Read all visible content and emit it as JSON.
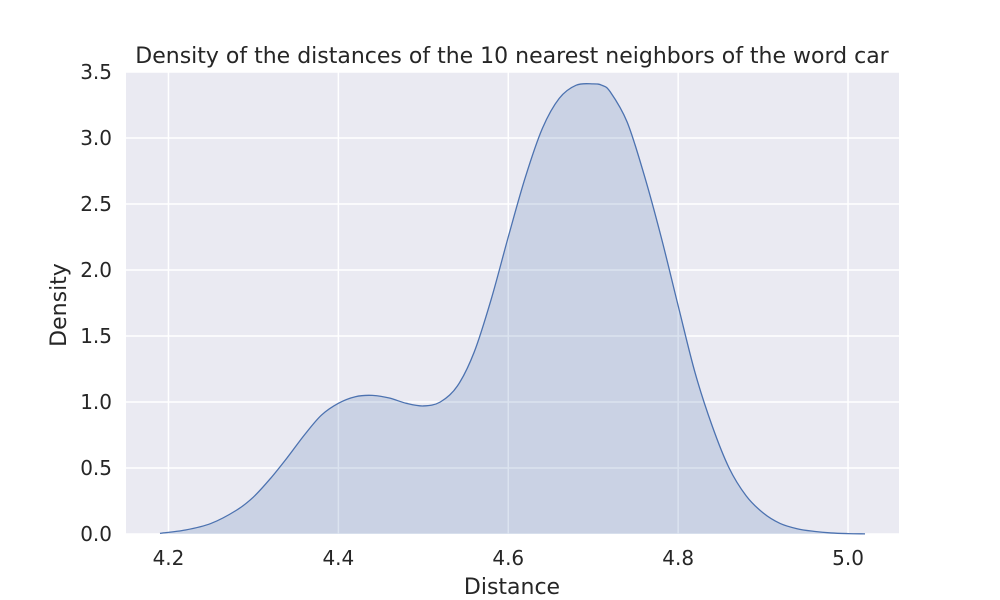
{
  "chart_data": {
    "type": "area",
    "title": "Density of the distances of the 10 nearest neighbors of the word car",
    "xlabel": "Distance",
    "ylabel": "Density",
    "xlim": [
      4.15,
      5.06
    ],
    "ylim": [
      0,
      3.5
    ],
    "grid": true,
    "x_ticks": [
      4.2,
      4.4,
      4.6,
      4.8,
      5.0
    ],
    "x_tick_labels": [
      "4.2",
      "4.4",
      "4.6",
      "4.8",
      "5.0"
    ],
    "y_ticks": [
      0.0,
      0.5,
      1.0,
      1.5,
      2.0,
      2.5,
      3.0,
      3.5
    ],
    "y_tick_labels": [
      "0.0",
      "0.5",
      "1.0",
      "1.5",
      "2.0",
      "2.5",
      "3.0",
      "3.5"
    ],
    "series": [
      {
        "line_color": "#4c72b0",
        "fill_color": "#4c72b0",
        "fill_opacity": 0.2,
        "x": [
          4.19,
          4.22,
          4.25,
          4.28,
          4.3,
          4.32,
          4.34,
          4.36,
          4.38,
          4.4,
          4.42,
          4.44,
          4.46,
          4.48,
          4.5,
          4.52,
          4.54,
          4.56,
          4.58,
          4.6,
          4.62,
          4.64,
          4.66,
          4.68,
          4.7,
          4.71,
          4.72,
          4.74,
          4.76,
          4.78,
          4.8,
          4.82,
          4.84,
          4.86,
          4.88,
          4.9,
          4.92,
          4.94,
          4.96,
          4.98,
          5.0,
          5.02
        ],
        "y": [
          0.005,
          0.03,
          0.08,
          0.18,
          0.28,
          0.42,
          0.58,
          0.75,
          0.9,
          0.99,
          1.04,
          1.05,
          1.03,
          0.99,
          0.97,
          1.0,
          1.12,
          1.38,
          1.78,
          2.25,
          2.7,
          3.07,
          3.3,
          3.4,
          3.41,
          3.4,
          3.35,
          3.12,
          2.72,
          2.25,
          1.73,
          1.22,
          0.82,
          0.5,
          0.29,
          0.16,
          0.08,
          0.04,
          0.02,
          0.008,
          0.003,
          0.001
        ]
      }
    ]
  }
}
